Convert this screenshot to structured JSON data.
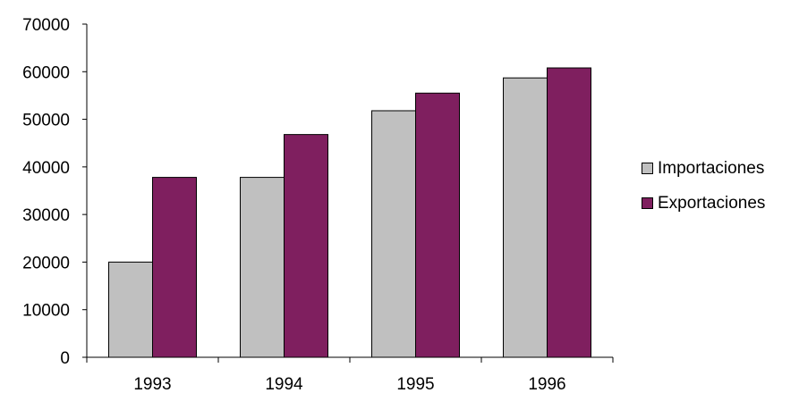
{
  "chart_data": {
    "type": "bar",
    "categories": [
      "1993",
      "1994",
      "1995",
      "1996"
    ],
    "series": [
      {
        "name": "Importaciones",
        "values": [
          20000,
          37800,
          51800,
          58700
        ],
        "color": "#c0c0c0"
      },
      {
        "name": "Exportaciones",
        "values": [
          37800,
          46800,
          55500,
          60800
        ],
        "color": "#7f1f5f"
      }
    ],
    "ylim": [
      0,
      70000
    ],
    "yticks": [
      "0",
      "10000",
      "20000",
      "30000",
      "40000",
      "50000",
      "60000",
      "70000"
    ],
    "grid": false,
    "legend_position": "right"
  }
}
